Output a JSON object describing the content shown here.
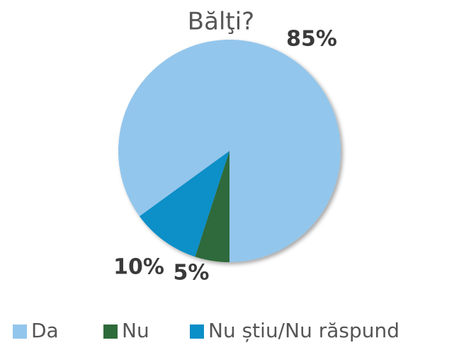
{
  "chart_data": {
    "type": "pie",
    "title": "Bălţi?",
    "categories": [
      "Da",
      "Nu",
      "Nu știu/Nu răspund"
    ],
    "values": [
      85,
      5,
      10
    ],
    "value_labels": [
      "85%",
      "5%",
      "10%"
    ],
    "colors": [
      "#93c6ec",
      "#2e6b3a",
      "#0a8fc8"
    ],
    "legend": "bottom"
  }
}
